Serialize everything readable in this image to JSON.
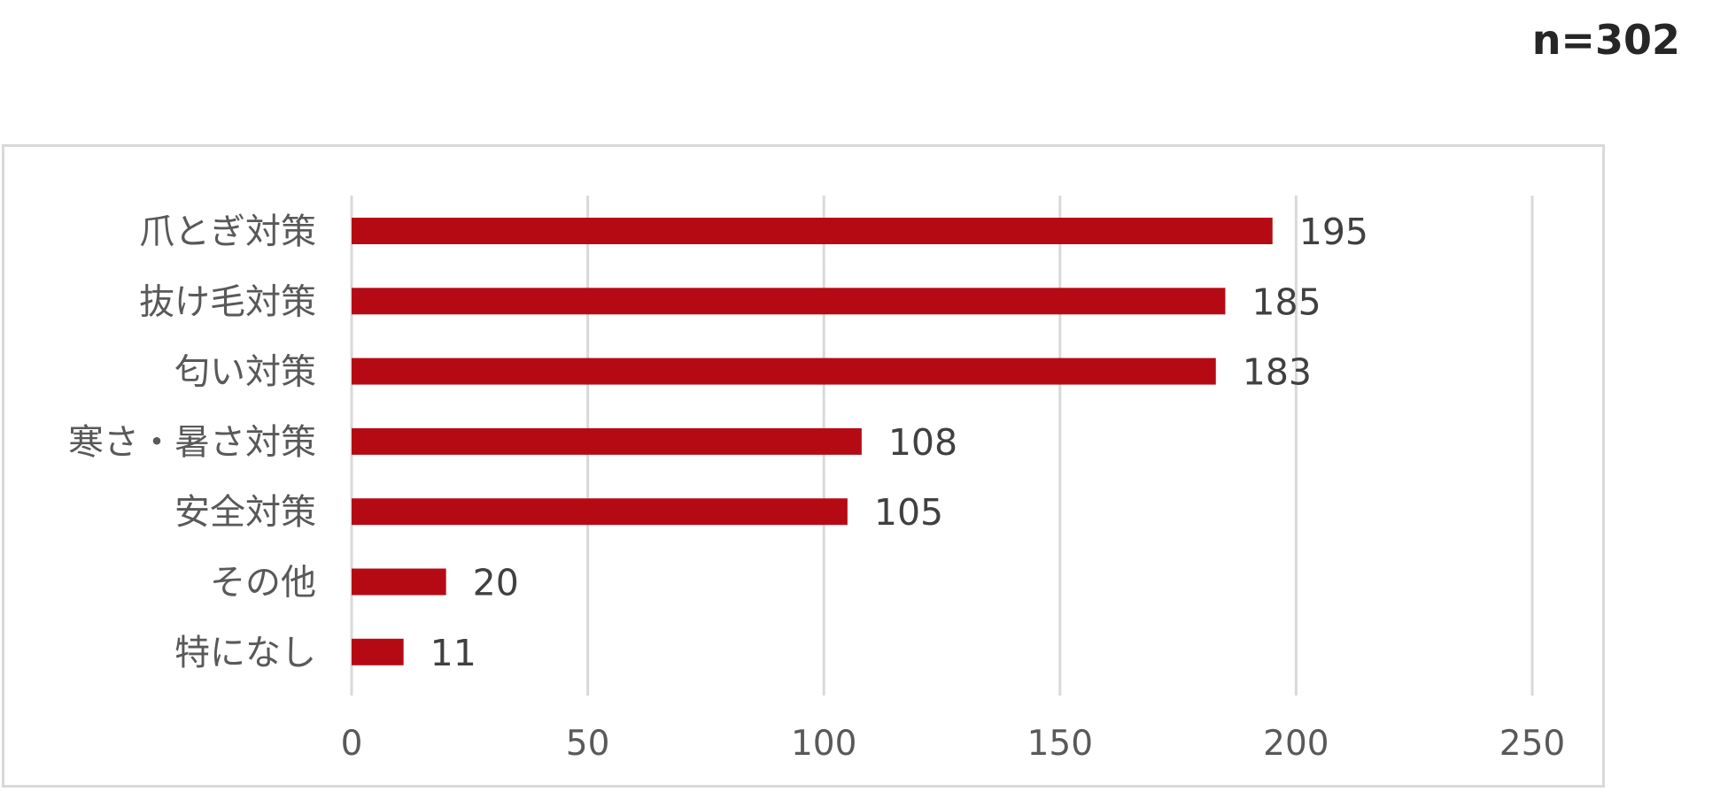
{
  "sample_size_label": "n=302",
  "chart_data": {
    "type": "bar",
    "orientation": "horizontal",
    "categories": [
      "爪とぎ対策",
      "抜け毛対策",
      "匂い対策",
      "寒さ・暑さ対策",
      "安全対策",
      "その他",
      "特になし"
    ],
    "values": [
      195,
      185,
      183,
      108,
      105,
      20,
      11
    ],
    "x_ticks": [
      "0",
      "50",
      "100",
      "150",
      "200",
      "250"
    ],
    "xlim": [
      0,
      250
    ],
    "grid": true,
    "legend": "none",
    "colors": {
      "bar": "#b50a14",
      "grid": "#d9d9d9",
      "frame": "#d9d9d9"
    }
  }
}
